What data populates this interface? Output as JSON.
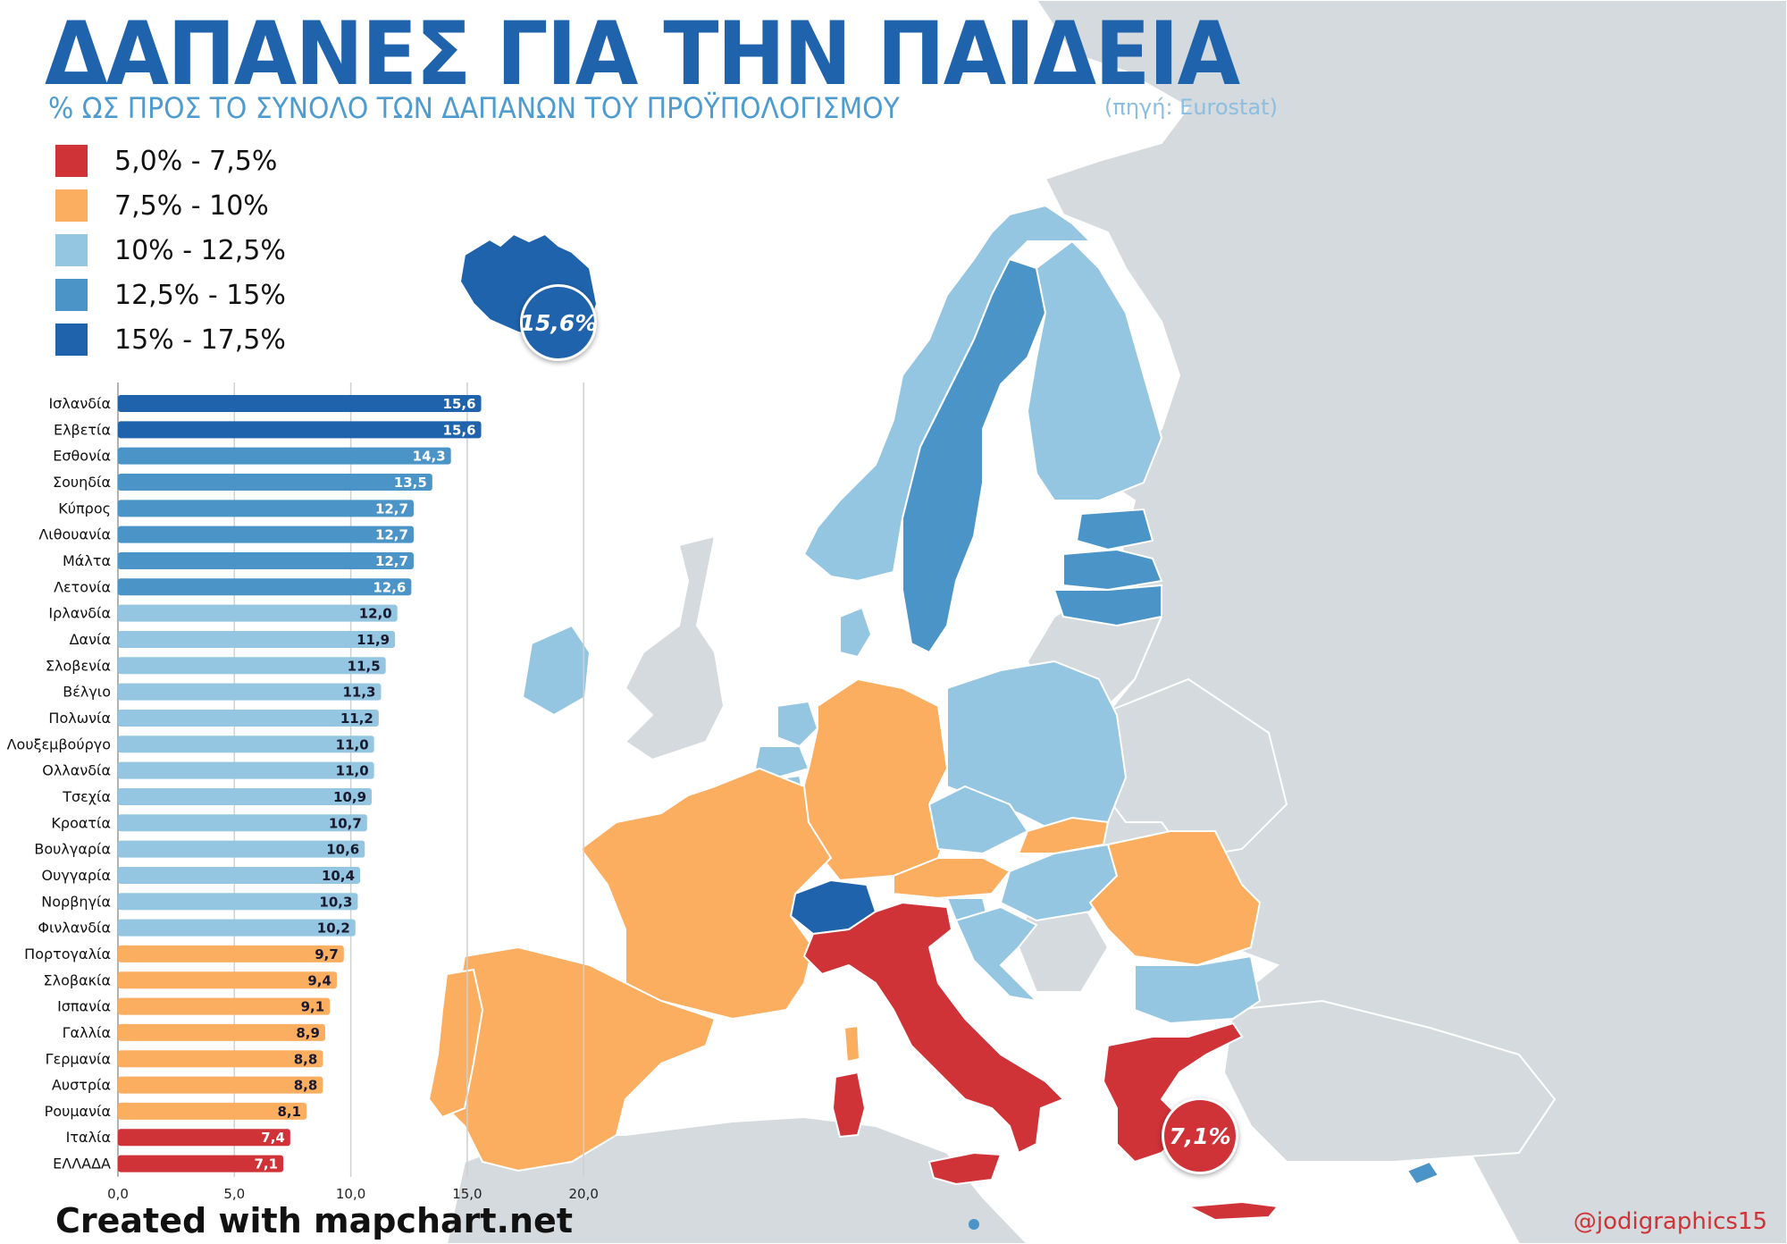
{
  "title": "ΔΑΠΑΝΕΣ ΓΙΑ ΤΗΝ ΠΑΙΔΕΙΑ",
  "subtitle": "% ΩΣ ΠΡΟΣ ΤΟ ΣΥΝΟΛΟ ΤΩΝ ΔΑΠΑΝΩΝ ΤΟΥ ΠΡΟΫΠΟΛΟΓΙΣΜΟΥ",
  "source": "(πηγή: Eurostat)",
  "legend": [
    {
      "label": "5,0% - 7,5%",
      "color": "#cf3237"
    },
    {
      "label": "7,5% - 10%",
      "color": "#fbad60"
    },
    {
      "label": "10% - 12,5%",
      "color": "#94c5e1"
    },
    {
      "label": "12,5% - 15%",
      "color": "#4a94c8"
    },
    {
      "label": "15% - 17,5%",
      "color": "#1f63ad"
    }
  ],
  "callouts": {
    "iceland": "15,6%",
    "greece": "7,1%"
  },
  "credit": "Created with mapchart.net",
  "handle": "@jodigraphics15",
  "map_colors": {
    "background_land": "#d4dadd",
    "sea": "#ffffff",
    "border": "#ffffff"
  },
  "chart_data": {
    "type": "bar",
    "orientation": "horizontal",
    "categories": [
      "Ισλανδία",
      "Ελβετία",
      "Εσθονία",
      "Σουηδία",
      "Κύπρος",
      "Λιθουανία",
      "Μάλτα",
      "Λετονία",
      "Ιρλανδία",
      "Δανία",
      "Σλοβενία",
      "Βέλγιο",
      "Πολωνία",
      "Λουξεμβούργο",
      "Ολλανδία",
      "Τσεχία",
      "Κροατία",
      "Βουλγαρία",
      "Ουγγαρία",
      "Νορβηγία",
      "Φινλανδία",
      "Πορτογαλία",
      "Σλοβακία",
      "Ισπανία",
      "Γαλλία",
      "Γερμανία",
      "Αυστρία",
      "Ρουμανία",
      "Ιταλία",
      "ΕΛΛΑΔΑ"
    ],
    "values": [
      15.6,
      15.6,
      14.3,
      13.5,
      12.7,
      12.7,
      12.7,
      12.6,
      12.0,
      11.9,
      11.5,
      11.3,
      11.2,
      11.0,
      11.0,
      10.9,
      10.7,
      10.6,
      10.4,
      10.3,
      10.2,
      9.7,
      9.4,
      9.1,
      8.9,
      8.8,
      8.8,
      8.1,
      7.4,
      7.1
    ],
    "value_labels": [
      "15,6",
      "15,6",
      "14,3",
      "13,5",
      "12,7",
      "12,7",
      "12,7",
      "12,6",
      "12,0",
      "11,9",
      "11,5",
      "11,3",
      "11,2",
      "11,0",
      "11,0",
      "10,9",
      "10,7",
      "10,6",
      "10,4",
      "10,3",
      "10,2",
      "9,7",
      "9,4",
      "9,1",
      "8,9",
      "8,8",
      "8,8",
      "8,1",
      "7,4",
      "7,1"
    ],
    "xlim": [
      0,
      20
    ],
    "xticks": [
      "0,0",
      "5,0",
      "10,0",
      "15,0",
      "20,0"
    ],
    "grid": true
  }
}
